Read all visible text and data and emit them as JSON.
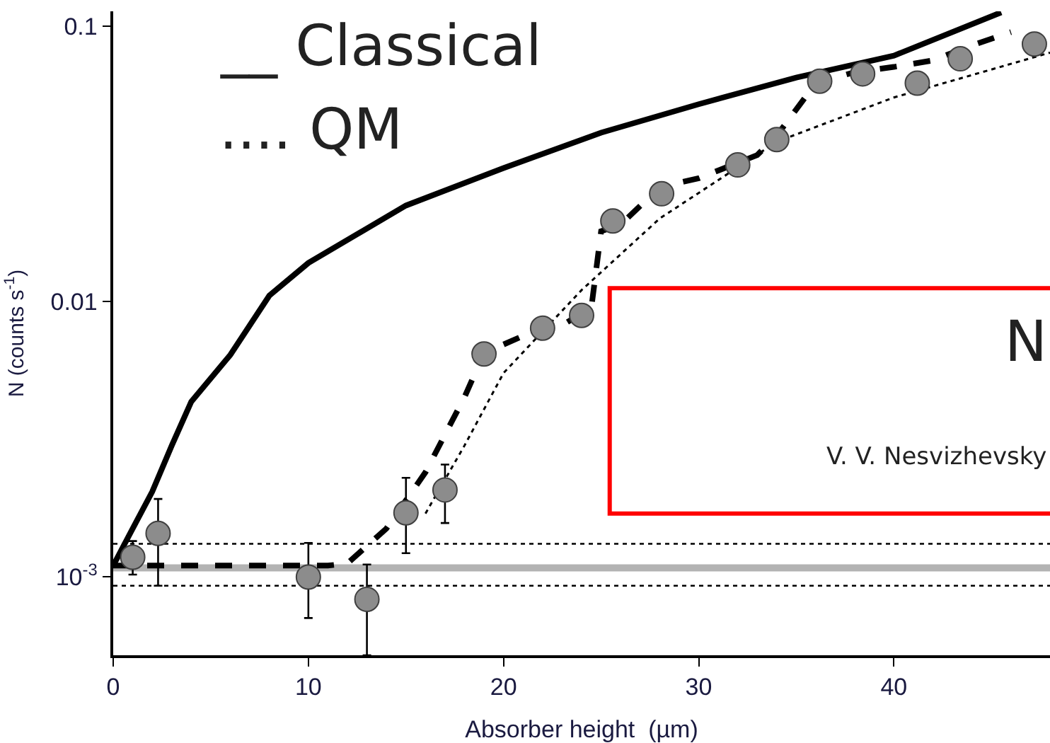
{
  "chart_data": {
    "type": "scatter",
    "xlabel": "Absorber height  (µm)",
    "ylabel": "N (counts s$^{-1}$)",
    "log": "y",
    "grid": false,
    "xlim": [
      0,
      48
    ],
    "xticks": [
      0,
      10,
      20,
      30,
      40
    ],
    "ylim": [
      0.00052,
      0.113
    ],
    "yticks": [
      {
        "value": 0.001,
        "label": "10$^{-3}$"
      },
      0.01,
      0.1
    ],
    "series": [
      {
        "type": "line",
        "color": "#000000",
        "line_style": "solid",
        "marker": "none",
        "x": [
          0,
          1,
          2,
          3,
          4,
          6,
          8,
          10,
          15,
          20,
          25,
          30,
          35,
          40,
          45.5
        ],
        "values": [
          0.0011,
          0.0015,
          0.00204,
          0.003,
          0.00433,
          0.0064,
          0.0105,
          0.0138,
          0.0223,
          0.0305,
          0.041,
          0.052,
          0.065,
          0.078,
          0.112
        ]
      },
      {
        "type": "line",
        "color": "#000000",
        "line_style": "dashed",
        "marker": "none",
        "x": [
          0,
          11,
          12,
          14,
          16,
          18,
          19,
          21,
          23,
          24.5,
          25,
          26,
          28,
          30,
          33,
          34,
          36,
          38,
          40,
          42,
          44,
          46
        ],
        "values": [
          0.0011,
          0.0011,
          0.00112,
          0.0015,
          0.0024,
          0.0045,
          0.0065,
          0.0075,
          0.0082,
          0.0095,
          0.018,
          0.019,
          0.026,
          0.028,
          0.034,
          0.04,
          0.062,
          0.068,
          0.071,
          0.075,
          0.085,
          0.095
        ]
      },
      {
        "type": "line",
        "color": "#000000",
        "line_style": "dotted",
        "marker": "none",
        "x": [
          16,
          18,
          20,
          24,
          28,
          34,
          40,
          48
        ],
        "values": [
          0.0017,
          0.003,
          0.0055,
          0.011,
          0.02,
          0.038,
          0.055,
          0.08
        ]
      },
      {
        "color": "#8c8c8c",
        "marker": "circle",
        "x": [
          1,
          2.3,
          10,
          13,
          15,
          17,
          19,
          22,
          24,
          25.6,
          28.1,
          32,
          34,
          36.2,
          38.4,
          41.2,
          43.4,
          47.2
        ],
        "values": [
          0.00118,
          0.00144,
          0.001,
          0.00083,
          0.00171,
          0.00207,
          0.00645,
          0.008,
          0.0089,
          0.0196,
          0.0246,
          0.0313,
          0.0387,
          0.063,
          0.067,
          0.062,
          0.076,
          0.086
        ],
        "errors": [
          [
            0.00102,
            0.00135
          ],
          [
            0.00093,
            0.00192
          ],
          [
            0.00071,
            0.00133
          ],
          [
            0.00052,
            0.00111
          ],
          [
            0.00122,
            0.00229
          ],
          [
            0.00157,
            0.00256
          ],
          null,
          null,
          null,
          null,
          null,
          null,
          null,
          null,
          null,
          null,
          null,
          null
        ]
      }
    ],
    "ref_lines": [
      {
        "axis": "y",
        "value": 0.00108,
        "color": "#b3b3b3",
        "line_style": "solid"
      },
      {
        "axis": "y",
        "value": 0.00132,
        "color": "#000000",
        "line_style": "dotted"
      },
      {
        "axis": "y",
        "value": 0.00093,
        "color": "#000000",
        "line_style": "dotted"
      }
    ],
    "annotations": [
      "__ Classical",
      ".... QM",
      "N",
      "V. V. Nesvizhevsky"
    ]
  }
}
